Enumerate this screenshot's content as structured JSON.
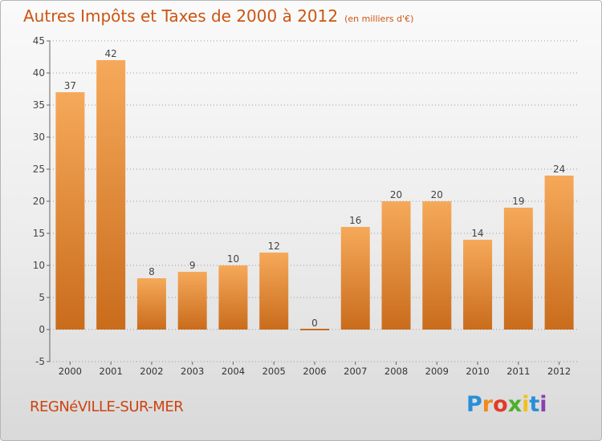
{
  "header": {
    "title": "Autres Impôts et Taxes de 2000 à 2012",
    "unit": "(en milliers d'€)"
  },
  "footer": {
    "location": "REGNéVILLE-SUR-MER",
    "brand": "Proxiti",
    "brand_letters": [
      "P",
      "r",
      "o",
      "x",
      "i",
      "t",
      "i"
    ],
    "brand_colors": [
      "#2a8fd6",
      "#f08a1a",
      "#e23a2a",
      "#4fae2c",
      "#f2c01a",
      "#2a8fd6",
      "#8a3fb0"
    ]
  },
  "colors": {
    "title": "#cc5511",
    "bar_light": "#f6a95a",
    "bar_dark": "#c96c1c",
    "grid": "#999999",
    "axis": "#666666"
  },
  "chart_data": {
    "type": "bar",
    "title": "Autres Impôts et Taxes de 2000 à 2012",
    "subtitle": "(en milliers d'€)",
    "categories": [
      "2000",
      "2001",
      "2002",
      "2003",
      "2004",
      "2005",
      "2006",
      "2007",
      "2008",
      "2009",
      "2010",
      "2011",
      "2012"
    ],
    "values": [
      37,
      42,
      8,
      9,
      10,
      12,
      0,
      16,
      20,
      20,
      14,
      19,
      24
    ],
    "data_labels": [
      "37",
      "42",
      "8",
      "9",
      "10",
      "12",
      "0",
      "16",
      "20",
      "20",
      "14",
      "19",
      "24"
    ],
    "ylim": [
      -5,
      45
    ],
    "yticks": [
      -5,
      0,
      5,
      10,
      15,
      20,
      25,
      30,
      35,
      40,
      45
    ],
    "ytick_labels": [
      "-5",
      "0",
      "5",
      "10",
      "15",
      "20",
      "25",
      "30",
      "35",
      "40",
      "45"
    ],
    "grid": true,
    "xlabel": "",
    "ylabel": ""
  }
}
